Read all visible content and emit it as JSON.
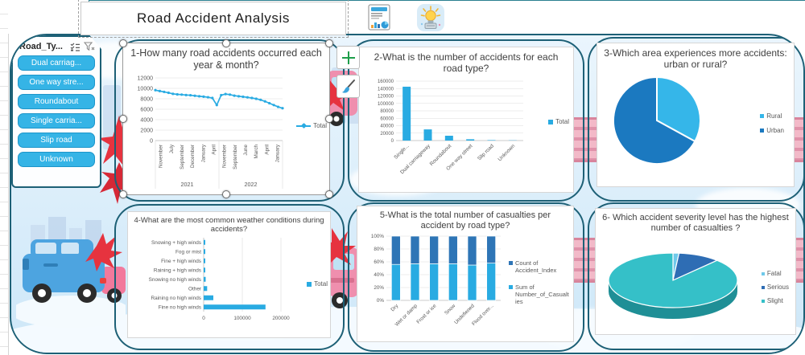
{
  "header": {
    "title": "Road Accident Analysis"
  },
  "toolbar": {
    "report_icon": "report-document",
    "idea_icon": "lightbulb-idea"
  },
  "slicer": {
    "title": "Road_Ty...",
    "icons": [
      "multiselect-icon",
      "clear-filter-icon"
    ],
    "items": [
      "Dual carriag...",
      "One way stre...",
      "Roundabout",
      "Single carria...",
      "Slip road",
      "Unknown"
    ]
  },
  "colors": {
    "chart_blue": "#29abe2",
    "dark_blue": "#2e75b6",
    "teal": "#35c0c8",
    "panel_border": "#1d6076",
    "slicer_button": "#35b4e6"
  },
  "chart_data": [
    {
      "type": "line",
      "title": "1-How many road accidents occurred each year & month?",
      "legend": "Total",
      "color": "#29abe2",
      "ymax": 12000,
      "yticks": [
        "0",
        "2000",
        "4000",
        "6000",
        "8000",
        "10000",
        "12000"
      ],
      "xlabels": [
        "November",
        "July",
        "September",
        "December",
        "January",
        "April",
        "November",
        "September",
        "June",
        "March",
        "April",
        "January"
      ],
      "year_groups": [
        "2021",
        "2022"
      ],
      "values": [
        9650,
        9480,
        9320,
        9150,
        8950,
        8850,
        8800,
        8720,
        8680,
        8580,
        8480,
        8400,
        8300,
        8150,
        6800,
        8700,
        8900,
        8800,
        8600,
        8480,
        8380,
        8280,
        8150,
        8000,
        7800,
        7500,
        7150,
        6800,
        6450,
        6200
      ]
    },
    {
      "type": "bar",
      "title": "2-What is the number of accidents for each road type?",
      "legend": "Total",
      "color": "#29abe2",
      "ymax": 160000,
      "yticks": [
        "0",
        "20000",
        "40000",
        "60000",
        "80000",
        "100000",
        "120000",
        "140000",
        "160000"
      ],
      "categories": [
        "Single...",
        "Dual carriageway",
        "Roundabout",
        "One way street",
        "Slip road",
        "Unknown"
      ],
      "values": [
        145000,
        30000,
        13000,
        3500,
        1200,
        600
      ]
    },
    {
      "type": "pie",
      "title": "3-Which area experiences more accidents: urban or rural?",
      "labels": [
        "Rural",
        "Urban"
      ],
      "values": [
        33,
        67
      ],
      "colors": [
        "#35b6e9",
        "#1b79c0"
      ]
    },
    {
      "type": "hbar",
      "title": "4-What are the most common weather conditions during accidents?",
      "legend": "Total",
      "color": "#29abe2",
      "xmax": 250000,
      "xticks": [
        "0",
        "100000",
        "200000"
      ],
      "xtick_values": [
        0,
        100000,
        200000
      ],
      "categories": [
        "Snowing + high winds",
        "Fog or mist",
        "Fine + high winds",
        "Raining + high winds",
        "Snowing no high winds",
        "Other",
        "Raining no high winds",
        "Fine no high winds"
      ],
      "values": [
        2000,
        2600,
        3200,
        3800,
        5200,
        9000,
        25000,
        160000
      ]
    },
    {
      "type": "stacked100",
      "title": "5-What is the total number of casualties per accident by road type?",
      "yticks": [
        "0%",
        "20%",
        "40%",
        "60%",
        "80%",
        "100%"
      ],
      "categories": [
        "Dry",
        "Wet or damp",
        "Frost or ice",
        "Snow",
        "Undefiened",
        "Flood over..."
      ],
      "series": [
        {
          "name": "Count of Accident_Index",
          "color": "#2e75b6",
          "values": [
            44,
            43,
            43,
            43,
            45,
            42
          ]
        },
        {
          "name": "Sum of Number_of_Casualties",
          "color": "#29abe2",
          "values": [
            56,
            57,
            57,
            57,
            55,
            58
          ]
        }
      ]
    },
    {
      "type": "pie3d",
      "title": "6- Which accident severity level has the highest number of casualties ?",
      "labels": [
        "Fatal",
        "Serious",
        "Slight"
      ],
      "values": [
        1.5,
        10.5,
        88
      ],
      "colors": [
        "#6fc9ea",
        "#2e6db4",
        "#35c0c8"
      ]
    }
  ]
}
